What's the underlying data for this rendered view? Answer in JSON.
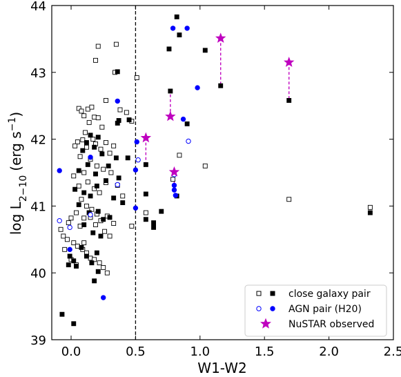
{
  "chart_data": {
    "type": "scatter",
    "xlabel": "W1-W2",
    "ylabel_main": "log L",
    "ylabel_sub": "2−10",
    "ylabel_unit": "(erg s",
    "ylabel_exp": "−1",
    "ylabel_close": ")",
    "xlim": [
      -0.15,
      2.5
    ],
    "ylim": [
      39,
      44
    ],
    "xticks": [
      0.0,
      0.5,
      1.0,
      1.5,
      2.0,
      2.5
    ],
    "xtick_labels": [
      "0.0",
      "0.5",
      "1.0",
      "1.5",
      "2.0",
      "2.5"
    ],
    "yticks": [
      39,
      40,
      41,
      42,
      43,
      44
    ],
    "ytick_labels": [
      "39",
      "40",
      "41",
      "42",
      "43",
      "44"
    ],
    "vline_x": 0.5,
    "legend_position": "lower-right",
    "legend": {
      "galaxy": "close galaxy pair",
      "agn": "AGN pair (H20)",
      "nustar": "NuSTAR observed"
    },
    "colors": {
      "galaxy": "#000000",
      "agn": "#0000ff",
      "nustar": "#bf00bf"
    },
    "series": {
      "galaxy_open": [
        [
          0.21,
          43.39
        ],
        [
          0.35,
          43.42
        ],
        [
          0.19,
          43.18
        ],
        [
          0.34,
          43.0
        ],
        [
          0.51,
          42.92
        ],
        [
          0.27,
          42.58
        ],
        [
          0.38,
          42.44
        ],
        [
          0.43,
          42.4
        ],
        [
          0.47,
          42.27
        ],
        [
          0.06,
          42.46
        ],
        [
          0.08,
          42.42
        ],
        [
          0.1,
          42.35
        ],
        [
          0.13,
          42.45
        ],
        [
          0.16,
          42.48
        ],
        [
          0.18,
          42.33
        ],
        [
          0.14,
          42.25
        ],
        [
          0.21,
          42.32
        ],
        [
          0.24,
          42.18
        ],
        [
          0.11,
          42.1
        ],
        [
          0.17,
          42.0
        ],
        [
          0.05,
          41.96
        ],
        [
          0.03,
          41.9
        ],
        [
          0.09,
          41.99
        ],
        [
          0.12,
          41.88
        ],
        [
          0.19,
          41.93
        ],
        [
          0.23,
          41.85
        ],
        [
          0.27,
          41.95
        ],
        [
          0.3,
          41.79
        ],
        [
          0.33,
          41.9
        ],
        [
          0.07,
          41.74
        ],
        [
          0.15,
          41.7
        ],
        [
          0.2,
          41.6
        ],
        [
          0.25,
          41.55
        ],
        [
          0.1,
          41.5
        ],
        [
          0.02,
          41.45
        ],
        [
          0.06,
          41.3
        ],
        [
          0.13,
          41.36
        ],
        [
          0.18,
          41.26
        ],
        [
          0.22,
          41.2
        ],
        [
          0.27,
          41.35
        ],
        [
          0.31,
          41.5
        ],
        [
          0.36,
          41.31
        ],
        [
          0.4,
          41.15
        ],
        [
          0.08,
          41.1
        ],
        [
          0.12,
          41.0
        ],
        [
          0.16,
          40.95
        ],
        [
          0.04,
          40.9
        ],
        [
          0.0,
          40.82
        ],
        [
          -0.02,
          40.75
        ],
        [
          0.07,
          40.7
        ],
        [
          0.1,
          40.82
        ],
        [
          0.15,
          40.83
        ],
        [
          0.19,
          40.72
        ],
        [
          0.23,
          40.78
        ],
        [
          0.28,
          40.85
        ],
        [
          0.33,
          40.74
        ],
        [
          -0.08,
          40.65
        ],
        [
          -0.06,
          40.55
        ],
        [
          -0.03,
          40.5
        ],
        [
          0.02,
          40.45
        ],
        [
          0.05,
          40.4
        ],
        [
          0.09,
          40.35
        ],
        [
          0.12,
          40.3
        ],
        [
          0.15,
          40.22
        ],
        [
          0.18,
          40.2
        ],
        [
          0.22,
          40.15
        ],
        [
          0.25,
          40.08
        ],
        [
          0.28,
          40.0
        ],
        [
          0.04,
          40.12
        ],
        [
          0.0,
          40.2
        ],
        [
          -0.05,
          40.35
        ],
        [
          0.1,
          40.45
        ],
        [
          0.47,
          40.7
        ],
        [
          0.14,
          40.9
        ],
        [
          0.2,
          40.88
        ],
        [
          0.26,
          40.62
        ],
        [
          0.3,
          40.55
        ],
        [
          0.58,
          40.9
        ],
        [
          0.84,
          41.76
        ],
        [
          1.04,
          41.6
        ],
        [
          0.79,
          41.4
        ],
        [
          1.69,
          41.1
        ],
        [
          2.32,
          40.98
        ]
      ],
      "galaxy_filled": [
        [
          0.82,
          43.83
        ],
        [
          0.84,
          43.56
        ],
        [
          0.76,
          43.35
        ],
        [
          1.04,
          43.33
        ],
        [
          0.36,
          43.01
        ],
        [
          0.77,
          42.72
        ],
        [
          1.16,
          42.8
        ],
        [
          1.69,
          42.58
        ],
        [
          0.37,
          42.28
        ],
        [
          0.36,
          42.24
        ],
        [
          0.45,
          42.29
        ],
        [
          0.9,
          42.23
        ],
        [
          0.15,
          42.06
        ],
        [
          0.21,
          42.03
        ],
        [
          0.12,
          41.95
        ],
        [
          0.18,
          41.88
        ],
        [
          0.09,
          41.83
        ],
        [
          0.24,
          41.78
        ],
        [
          0.35,
          41.72
        ],
        [
          0.44,
          41.72
        ],
        [
          0.13,
          41.62
        ],
        [
          0.29,
          41.6
        ],
        [
          0.06,
          41.53
        ],
        [
          0.19,
          41.48
        ],
        [
          0.37,
          41.42
        ],
        [
          0.27,
          41.38
        ],
        [
          0.03,
          41.25
        ],
        [
          0.1,
          41.2
        ],
        [
          0.2,
          41.3
        ],
        [
          0.15,
          41.15
        ],
        [
          0.33,
          41.12
        ],
        [
          0.58,
          41.18
        ],
        [
          0.82,
          41.15
        ],
        [
          0.4,
          41.05
        ],
        [
          0.06,
          41.02
        ],
        [
          0.14,
          40.9
        ],
        [
          0.21,
          40.92
        ],
        [
          0.25,
          40.8
        ],
        [
          0.3,
          40.83
        ],
        [
          0.58,
          40.8
        ],
        [
          0.64,
          40.75
        ],
        [
          0.64,
          40.68
        ],
        [
          0.7,
          40.92
        ],
        [
          0.1,
          40.72
        ],
        [
          0.17,
          40.6
        ],
        [
          0.23,
          40.55
        ],
        [
          0.08,
          40.38
        ],
        [
          0.2,
          40.3
        ],
        [
          -0.01,
          40.25
        ],
        [
          0.02,
          40.18
        ],
        [
          0.12,
          40.25
        ],
        [
          0.16,
          40.15
        ],
        [
          -0.02,
          40.12
        ],
        [
          0.04,
          40.1
        ],
        [
          0.21,
          40.02
        ],
        [
          0.18,
          39.88
        ],
        [
          -0.07,
          39.38
        ],
        [
          0.02,
          39.24
        ],
        [
          0.58,
          41.62
        ],
        [
          2.32,
          40.9
        ]
      ],
      "agn_open": [
        [
          -0.09,
          40.78
        ],
        [
          -0.01,
          40.68
        ],
        [
          0.15,
          40.87
        ],
        [
          0.36,
          41.32
        ],
        [
          0.52,
          41.69
        ],
        [
          0.91,
          41.97
        ],
        [
          0.8,
          41.47
        ]
      ],
      "agn_filled": [
        [
          0.79,
          43.66
        ],
        [
          0.9,
          43.66
        ],
        [
          0.36,
          42.57
        ],
        [
          0.51,
          41.96
        ],
        [
          0.5,
          41.54
        ],
        [
          0.98,
          42.77
        ],
        [
          0.87,
          42.3
        ],
        [
          -0.09,
          41.53
        ],
        [
          0.15,
          41.73
        ],
        [
          0.8,
          41.31
        ],
        [
          0.8,
          41.24
        ],
        [
          0.81,
          41.16
        ],
        [
          0.5,
          40.97
        ],
        [
          -0.01,
          40.35
        ],
        [
          0.25,
          39.63
        ]
      ],
      "nustar": [
        [
          1.16,
          43.51
        ],
        [
          1.69,
          43.15
        ],
        [
          0.77,
          42.34
        ],
        [
          0.58,
          42.02
        ],
        [
          0.8,
          41.51
        ]
      ],
      "nustar_links": [
        [
          1.16,
          43.51,
          42.8
        ],
        [
          1.69,
          43.15,
          42.58
        ],
        [
          0.77,
          42.34,
          42.72
        ],
        [
          0.58,
          42.02,
          41.62
        ],
        [
          0.8,
          41.51,
          41.31
        ]
      ]
    }
  }
}
